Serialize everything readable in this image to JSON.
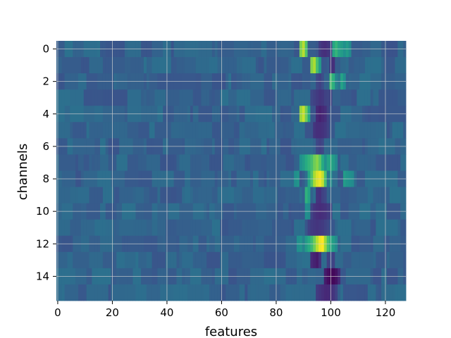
{
  "chart_data": {
    "type": "heatmap",
    "title": "",
    "xlabel": "features",
    "ylabel": "channels",
    "xlim": [
      -0.5,
      127.5
    ],
    "ylim": [
      15.5,
      -0.5
    ],
    "x_ticks": [
      0,
      20,
      40,
      60,
      80,
      100,
      120
    ],
    "y_ticks": [
      0,
      2,
      4,
      6,
      8,
      10,
      12,
      14
    ],
    "grid": true,
    "colormap": "viridis",
    "n_rows": 16,
    "n_cols": 128,
    "baseline_value": 0.32,
    "hotspots": [
      {
        "row": 0,
        "cols": [
          89,
          90,
          91
        ],
        "values": [
          0.8,
          0.9,
          0.72
        ]
      },
      {
        "row": 0,
        "cols": [
          101,
          102,
          103,
          104,
          105,
          106,
          107
        ],
        "values": [
          0.6,
          0.66,
          0.58,
          0.55,
          0.5,
          0.55,
          0.48
        ]
      },
      {
        "row": 0,
        "cols": [
          96,
          97,
          98,
          99,
          100
        ],
        "values": [
          0.18,
          0.15,
          0.14,
          0.16,
          0.2
        ]
      },
      {
        "row": 1,
        "cols": [
          93,
          94,
          95,
          96
        ],
        "values": [
          0.82,
          0.88,
          0.7,
          0.55
        ]
      },
      {
        "row": 1,
        "cols": [
          100,
          101
        ],
        "values": [
          0.16,
          0.14
        ]
      },
      {
        "row": 2,
        "cols": [
          100,
          101,
          102,
          103,
          104,
          105
        ],
        "values": [
          0.7,
          0.64,
          0.45,
          0.4,
          0.58,
          0.5
        ]
      },
      {
        "row": 2,
        "cols": [
          95,
          96,
          97
        ],
        "values": [
          0.22,
          0.2,
          0.24
        ]
      },
      {
        "row": 3,
        "cols": [
          93,
          94,
          95,
          96,
          97,
          98,
          99,
          100
        ],
        "values": [
          0.22,
          0.2,
          0.18,
          0.16,
          0.17,
          0.2,
          0.21,
          0.2
        ]
      },
      {
        "row": 4,
        "cols": [
          89,
          90,
          91,
          92
        ],
        "values": [
          0.85,
          0.92,
          0.78,
          0.6
        ]
      },
      {
        "row": 4,
        "cols": [
          95,
          96,
          97,
          98,
          99
        ],
        "values": [
          0.12,
          0.1,
          0.12,
          0.14,
          0.2
        ]
      },
      {
        "row": 5,
        "cols": [
          94,
          95,
          96,
          97,
          98,
          99
        ],
        "values": [
          0.16,
          0.14,
          0.14,
          0.15,
          0.17,
          0.2
        ]
      },
      {
        "row": 6,
        "cols": [
          95,
          96,
          97
        ],
        "values": [
          0.22,
          0.2,
          0.22
        ]
      },
      {
        "row": 7,
        "cols": [
          89,
          90,
          91,
          92,
          93,
          94,
          95,
          96,
          97,
          98,
          99,
          100,
          101,
          102
        ],
        "values": [
          0.5,
          0.55,
          0.62,
          0.66,
          0.7,
          0.78,
          0.82,
          0.75,
          0.62,
          0.5,
          0.58,
          0.62,
          0.55,
          0.48
        ]
      },
      {
        "row": 8,
        "cols": [
          87,
          88,
          92,
          93,
          94,
          95,
          96,
          97,
          98,
          99,
          100,
          105,
          106,
          107,
          108
        ],
        "values": [
          0.5,
          0.52,
          0.6,
          0.72,
          0.88,
          0.95,
          0.98,
          0.92,
          0.7,
          0.4,
          0.5,
          0.55,
          0.52,
          0.5,
          0.48
        ]
      },
      {
        "row": 9,
        "cols": [
          91,
          92,
          95,
          96,
          97,
          98
        ],
        "values": [
          0.65,
          0.58,
          0.16,
          0.15,
          0.2,
          0.22
        ]
      },
      {
        "row": 10,
        "cols": [
          91,
          92,
          93,
          94,
          95,
          96,
          97,
          98,
          99,
          100
        ],
        "values": [
          0.5,
          0.48,
          0.2,
          0.16,
          0.14,
          0.13,
          0.14,
          0.15,
          0.18,
          0.2
        ]
      },
      {
        "row": 11,
        "cols": [
          92,
          93,
          94,
          95,
          96,
          97,
          98,
          99
        ],
        "values": [
          0.2,
          0.18,
          0.17,
          0.16,
          0.17,
          0.18,
          0.2,
          0.22
        ]
      },
      {
        "row": 12,
        "cols": [
          88,
          89,
          90,
          91,
          92,
          93,
          94,
          95,
          96,
          97,
          98,
          99,
          100,
          101,
          102
        ],
        "values": [
          0.5,
          0.52,
          0.45,
          0.55,
          0.62,
          0.68,
          0.78,
          0.9,
          0.98,
          1.0,
          0.85,
          0.7,
          0.62,
          0.55,
          0.48
        ]
      },
      {
        "row": 13,
        "cols": [
          93,
          94,
          95,
          96,
          99,
          100,
          101
        ],
        "values": [
          0.12,
          0.1,
          0.08,
          0.14,
          0.2,
          0.24,
          0.2
        ]
      },
      {
        "row": 14,
        "cols": [
          98,
          99,
          100,
          101,
          102,
          103
        ],
        "values": [
          0.08,
          0.04,
          0.02,
          0.02,
          0.05,
          0.12
        ]
      },
      {
        "row": 15,
        "cols": [
          95,
          96,
          97,
          98,
          99,
          100,
          101,
          102
        ],
        "values": [
          0.18,
          0.16,
          0.14,
          0.12,
          0.12,
          0.14,
          0.16,
          0.2
        ]
      }
    ]
  }
}
